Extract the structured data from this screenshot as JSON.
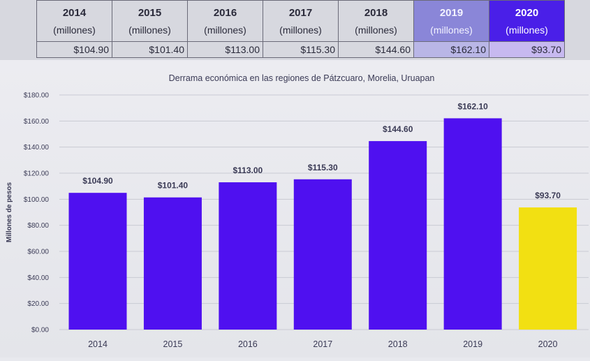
{
  "table": {
    "headers": [
      {
        "year": "2014",
        "unit": "(millones)"
      },
      {
        "year": "2015",
        "unit": "(millones)"
      },
      {
        "year": "2016",
        "unit": "(millones)"
      },
      {
        "year": "2017",
        "unit": "(millones)"
      },
      {
        "year": "2018",
        "unit": "(millones)"
      },
      {
        "year": "2019",
        "unit": "(millones)"
      },
      {
        "year": "2020",
        "unit": "(millones)"
      }
    ],
    "values": [
      "$104.90",
      "$101.40",
      "$113.00",
      "$115.30",
      "$144.60",
      "$162.10",
      "$93.70"
    ]
  },
  "colors": {
    "bar": "#4f10f0",
    "bar_highlight": "#f2e012",
    "grid": "#c9cad3",
    "text": "#3a3a55"
  },
  "chart_data": {
    "type": "bar",
    "title": "Derrama económica en las regiones de Pátzcuaro, Morelia, Uruapan",
    "xlabel": "",
    "ylabel": "Millones de pesos",
    "categories": [
      "2014",
      "2015",
      "2016",
      "2017",
      "2018",
      "2019",
      "2020"
    ],
    "values": [
      104.9,
      101.4,
      113.0,
      115.3,
      144.6,
      162.1,
      93.7
    ],
    "data_labels": [
      "$104.90",
      "$101.40",
      "$113.00",
      "$115.30",
      "$144.60",
      "$162.10",
      "$93.70"
    ],
    "yticks": [
      "$0.00",
      "$20.00",
      "$40.00",
      "$60.00",
      "$80.00",
      "$100.00",
      "$120.00",
      "$140.00",
      "$160.00",
      "$180.00"
    ],
    "ylim": [
      0,
      180
    ],
    "grid": true,
    "highlight_category": "2020"
  }
}
